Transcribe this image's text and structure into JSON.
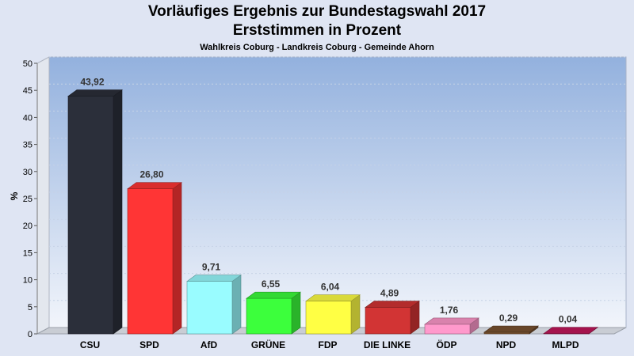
{
  "chart_data": {
    "type": "bar",
    "title": "Vorläufiges Ergebnis zur Bundestagswahl 2017",
    "subtitle": "Erststimmen in Prozent",
    "caption": "Wahlkreis Coburg - Landkreis Coburg - Gemeinde Ahorn",
    "ylabel": "%",
    "xlabel": "",
    "ylim": [
      0,
      50
    ],
    "yticks": [
      0,
      5,
      10,
      15,
      20,
      25,
      30,
      35,
      40,
      45,
      50
    ],
    "grid": true,
    "categories": [
      "CSU",
      "SPD",
      "AfD",
      "GRÜNE",
      "FDP",
      "DIE LINKE",
      "ÖDP",
      "NPD",
      "MLPD"
    ],
    "values": [
      43.92,
      26.8,
      9.71,
      6.55,
      6.04,
      4.89,
      1.76,
      0.29,
      0.04
    ],
    "value_labels": [
      "43,92",
      "26,80",
      "9,71",
      "6,55",
      "6,04",
      "4,89",
      "1,76",
      "0,29",
      "0,04"
    ],
    "colors": [
      "#2b2f3a",
      "#ff3535",
      "#99fcff",
      "#3cff3c",
      "#ffff44",
      "#d23434",
      "#ff99cc",
      "#7a5230",
      "#c2185b"
    ]
  }
}
